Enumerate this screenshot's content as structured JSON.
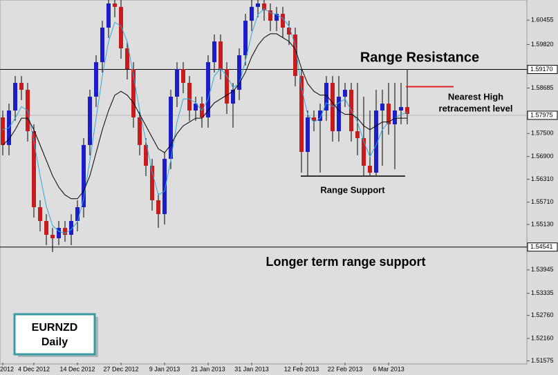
{
  "chart_data": {
    "type": "candlestick",
    "up_color": "#1c1cc8",
    "down_color": "#c81c1c",
    "ylim": [
      1.5153,
      1.6098
    ],
    "yticks": [
      1.60455,
      {
        "value": 1.5982,
        "label": "1.59820"
      },
      1.58685,
      {
        "value": 1.575,
        "label": "1.57500"
      },
      {
        "value": 1.569,
        "label": "1.56900"
      },
      {
        "value": 1.5631,
        "label": "1.56310"
      },
      {
        "value": 1.5571,
        "label": "1.55710"
      },
      {
        "value": 1.5513,
        "label": "1.55130"
      },
      1.53945,
      1.53335,
      {
        "value": 1.5276,
        "label": "1.52760"
      },
      {
        "value": 1.5216,
        "label": "1.52160"
      },
      1.51575
    ],
    "categories": [
      "2012",
      null,
      null,
      null,
      null,
      "4 Dec 2012",
      null,
      null,
      null,
      null,
      null,
      null,
      "14 Dec 2012",
      null,
      null,
      null,
      null,
      null,
      null,
      "27 Dec 2012",
      null,
      null,
      null,
      null,
      null,
      null,
      "9 Jan 2013",
      null,
      null,
      null,
      null,
      null,
      null,
      "21 Jan 2013",
      null,
      null,
      null,
      null,
      null,
      null,
      "31 Jan 2013",
      null,
      null,
      null,
      null,
      null,
      null,
      null,
      "12 Feb 2013",
      null,
      null,
      null,
      null,
      null,
      null,
      "22 Feb 2013",
      null,
      null,
      null,
      null,
      null,
      null,
      "6 Mar 2013",
      null,
      null,
      null
    ],
    "open": [
      1.5792,
      1.572,
      1.581,
      1.5882,
      1.5864,
      1.5756,
      1.5558,
      1.5522,
      1.5486,
      1.5477,
      1.5504,
      1.5486,
      1.5522,
      1.5558,
      1.572,
      1.5846,
      1.5936,
      1.6026,
      1.6089,
      1.608,
      1.5972,
      1.5918,
      1.5792,
      1.572,
      1.5666,
      1.5576,
      1.554,
      1.5684,
      1.5846,
      1.5918,
      1.5882,
      1.581,
      1.5828,
      1.5792,
      1.5936,
      1.599,
      1.5918,
      1.5828,
      1.5864,
      1.5954,
      1.6044,
      1.608,
      1.6089,
      1.6071,
      1.6044,
      1.6062,
      1.6026,
      1.6008,
      1.59,
      1.5702,
      1.5792,
      1.5783,
      1.581,
      1.5882,
      1.5756,
      1.5846,
      1.5864,
      1.5756,
      1.5738,
      1.5666,
      1.5648,
      1.581,
      1.5828,
      1.5774,
      1.581,
      1.5819
    ],
    "high": [
      1.581,
      1.5828,
      1.59,
      1.59,
      1.5882,
      1.5774,
      1.5576,
      1.554,
      1.5504,
      1.5522,
      1.5522,
      1.554,
      1.5576,
      1.5738,
      1.5864,
      1.5954,
      1.6044,
      1.6098,
      1.6098,
      1.6098,
      1.599,
      1.5936,
      1.581,
      1.5738,
      1.5684,
      1.5594,
      1.5702,
      1.5864,
      1.5936,
      1.5936,
      1.59,
      1.5846,
      1.5846,
      1.5954,
      1.6008,
      1.6008,
      1.5936,
      1.5882,
      1.5972,
      1.6062,
      1.6098,
      1.6098,
      1.6098,
      1.6089,
      1.608,
      1.608,
      1.6044,
      1.6026,
      1.5918,
      1.581,
      1.581,
      1.5828,
      1.59,
      1.59,
      1.59,
      1.5882,
      1.5882,
      1.5882,
      1.5846,
      1.581,
      1.5864,
      1.5864,
      1.5882,
      1.5882,
      1.5882,
      1.5918
    ],
    "low": [
      1.5693,
      1.5693,
      1.5783,
      1.5837,
      1.5729,
      1.5531,
      1.5495,
      1.5459,
      1.5441,
      1.5459,
      1.5468,
      1.5459,
      1.5495,
      1.5531,
      1.5693,
      1.5819,
      1.5909,
      1.5999,
      1.6053,
      1.5945,
      1.5891,
      1.5765,
      1.5693,
      1.5639,
      1.5549,
      1.5504,
      1.5513,
      1.5657,
      1.5819,
      1.5855,
      1.5783,
      1.5783,
      1.5765,
      1.5765,
      1.5909,
      1.5891,
      1.5801,
      1.5765,
      1.5837,
      1.5927,
      1.6017,
      1.6053,
      1.6044,
      1.6017,
      1.6017,
      1.5999,
      1.5981,
      1.5873,
      1.5648,
      1.5639,
      1.5756,
      1.5648,
      1.5783,
      1.5729,
      1.5729,
      1.5819,
      1.5729,
      1.5693,
      1.5639,
      1.5639,
      1.5639,
      1.5666,
      1.5747,
      1.5657,
      1.5774,
      1.5774
    ],
    "close": [
      1.572,
      1.581,
      1.5882,
      1.5864,
      1.5756,
      1.5558,
      1.5522,
      1.5486,
      1.5477,
      1.5504,
      1.5486,
      1.5522,
      1.5558,
      1.572,
      1.5846,
      1.5936,
      1.6026,
      1.6089,
      1.608,
      1.5972,
      1.5918,
      1.5792,
      1.572,
      1.5666,
      1.5576,
      1.554,
      1.5684,
      1.5846,
      1.5918,
      1.5882,
      1.581,
      1.5828,
      1.5792,
      1.5936,
      1.599,
      1.5918,
      1.5828,
      1.5864,
      1.5954,
      1.6044,
      1.608,
      1.6089,
      1.6071,
      1.6044,
      1.6062,
      1.6026,
      1.6008,
      1.59,
      1.5702,
      1.5792,
      1.5783,
      1.581,
      1.5882,
      1.5756,
      1.5846,
      1.5864,
      1.5756,
      1.5738,
      1.5666,
      1.5648,
      1.581,
      1.5828,
      1.5774,
      1.581,
      1.5819,
      1.5801
    ],
    "series": [
      {
        "color": "#2aa8e0",
        "values": [
          1.576,
          1.5765,
          1.579,
          1.582,
          1.581,
          1.573,
          1.564,
          1.556,
          1.551,
          1.5495,
          1.549,
          1.55,
          1.552,
          1.558,
          1.568,
          1.579,
          1.59,
          1.599,
          1.604,
          1.603,
          1.599,
          1.59,
          1.581,
          1.573,
          1.565,
          1.559,
          1.56,
          1.568,
          1.578,
          1.584,
          1.584,
          1.583,
          1.581,
          1.584,
          1.59,
          1.592,
          1.59,
          1.587,
          1.588,
          1.594,
          1.601,
          1.606,
          1.6075,
          1.6065,
          1.606,
          1.605,
          1.603,
          1.598,
          1.587,
          1.58,
          1.578,
          1.579,
          1.583,
          1.582,
          1.583,
          1.584,
          1.581,
          1.578,
          1.573,
          1.569,
          1.572,
          1.576,
          1.578,
          1.579,
          1.58,
          1.5805
        ]
      },
      {
        "color": "#000000",
        "values": [
          1.572,
          1.5735,
          1.576,
          1.579,
          1.579,
          1.576,
          1.572,
          1.568,
          1.564,
          1.561,
          1.559,
          1.558,
          1.558,
          1.56,
          1.564,
          1.57,
          1.576,
          1.581,
          1.585,
          1.586,
          1.585,
          1.583,
          1.58,
          1.577,
          1.574,
          1.571,
          1.57,
          1.572,
          1.575,
          1.577,
          1.578,
          1.579,
          1.579,
          1.581,
          1.583,
          1.584,
          1.585,
          1.586,
          1.588,
          1.591,
          1.595,
          1.598,
          1.6,
          1.601,
          1.601,
          1.6,
          1.599,
          1.597,
          1.592,
          1.588,
          1.586,
          1.585,
          1.585,
          1.583,
          1.581,
          1.58,
          1.58,
          1.579,
          1.577,
          1.576,
          1.577,
          1.578,
          1.578,
          1.579,
          1.579,
          1.579
        ]
      }
    ],
    "levels": [
      {
        "value": 1.5917,
        "label": "1.59170",
        "color": "#000000"
      },
      {
        "value": 1.57975,
        "label": "1.57975",
        "color": "#b8b8b8"
      },
      {
        "value": 1.54541,
        "label": "1.54541",
        "color": "#000000"
      }
    ],
    "segments": [
      {
        "value": 1.5872,
        "color": "#e02020"
      },
      {
        "value": 1.5639,
        "color": "#333333"
      }
    ],
    "annotations": [
      "Range Resistance",
      "Nearest High",
      "retracement level",
      "Range Support",
      "Longer term range support"
    ],
    "symbol": "EURNZD",
    "timeframe": "Daily"
  }
}
